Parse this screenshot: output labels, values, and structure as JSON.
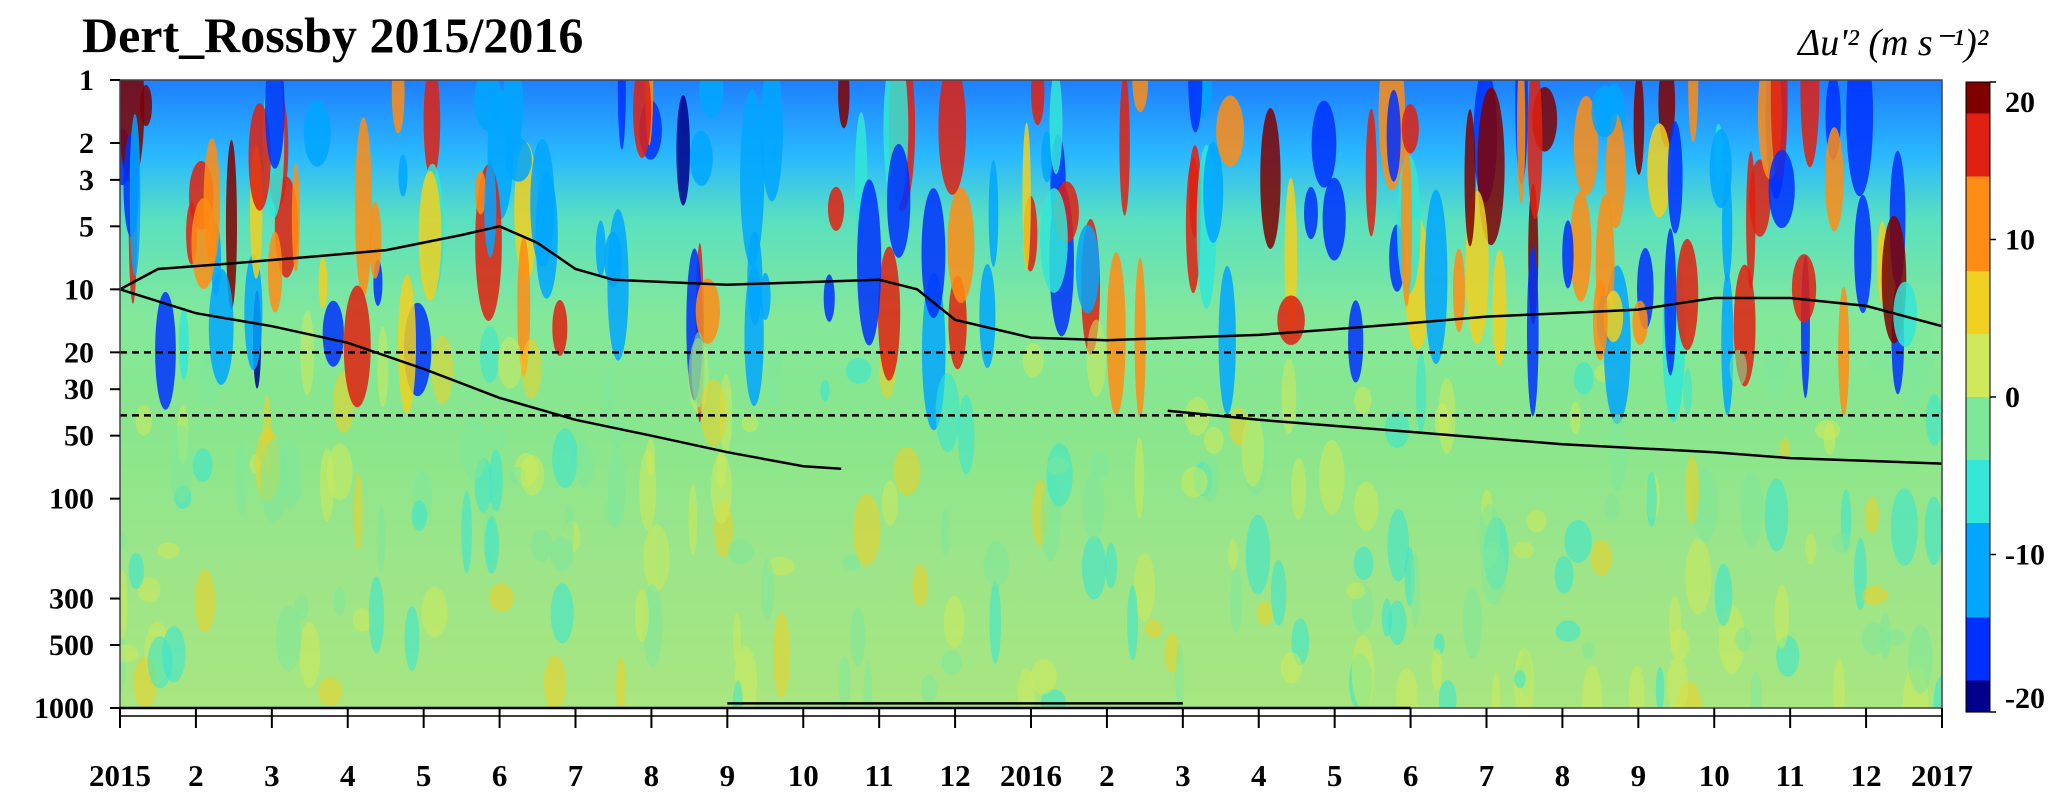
{
  "chart_data": {
    "type": "heatmap",
    "title": "Dert_Rossby 2015/2016",
    "colorbar_label": "Δu'² (m s⁻¹)²",
    "colorbar": {
      "ticks": [
        "20",
        "10",
        "0",
        "-10",
        "-20"
      ],
      "range": [
        -20,
        20
      ],
      "colormap": [
        "#00008b",
        "#0030ff",
        "#00a6ff",
        "#33e6d6",
        "#7de89a",
        "#cfe95a",
        "#f0d020",
        "#ff8c14",
        "#e02010",
        "#800000"
      ]
    },
    "y_axis": {
      "scale": "log",
      "reversed": true,
      "range": [
        1000,
        1
      ],
      "tick_labels": [
        "1",
        "2",
        "3",
        "5",
        "10",
        "20",
        "30",
        "50",
        "100",
        "300",
        "500",
        "1000"
      ],
      "tick_values": [
        1,
        2,
        3,
        5,
        10,
        20,
        30,
        50,
        100,
        300,
        500,
        1000
      ]
    },
    "x_axis": {
      "range": [
        0,
        24
      ],
      "tick_labels": [
        "2015",
        "2",
        "3",
        "4",
        "5",
        "6",
        "7",
        "8",
        "9",
        "10",
        "11",
        "12",
        "2016",
        "2",
        "3",
        "4",
        "5",
        "6",
        "7",
        "8",
        "9",
        "10",
        "11",
        "12",
        "2017"
      ]
    },
    "reference_lines": [
      {
        "style": "dashed",
        "y": 20
      },
      {
        "style": "dashed",
        "y": 40
      }
    ],
    "bottom_bars": [
      {
        "y": 1000,
        "x_start": 0,
        "x_end": 17
      },
      {
        "y": 950,
        "x_start": 8,
        "x_end": 14
      }
    ],
    "wind_contours": {
      "zero_line": [
        {
          "x": 0,
          "y": 10
        },
        {
          "x": 1,
          "y": 13
        },
        {
          "x": 2,
          "y": 15
        },
        {
          "x": 3,
          "y": 18
        },
        {
          "x": 4,
          "y": 24
        },
        {
          "x": 5,
          "y": 33
        },
        {
          "x": 6,
          "y": 42
        },
        {
          "x": 7,
          "y": 50
        },
        {
          "x": 8,
          "y": 60
        },
        {
          "x": 9,
          "y": 70
        },
        {
          "x": 9.5,
          "y": 72
        }
      ],
      "zero_line_2": [
        {
          "x": 13.8,
          "y": 38
        },
        {
          "x": 15,
          "y": 42
        },
        {
          "x": 17,
          "y": 48
        },
        {
          "x": 19,
          "y": 55
        },
        {
          "x": 21,
          "y": 60
        },
        {
          "x": 22,
          "y": 64
        },
        {
          "x": 24,
          "y": 68
        }
      ],
      "upper_line": [
        {
          "x": 0,
          "y": 10
        },
        {
          "x": 0.5,
          "y": 8
        },
        {
          "x": 1.5,
          "y": 7.5
        },
        {
          "x": 2.5,
          "y": 7
        },
        {
          "x": 3.5,
          "y": 6.5
        },
        {
          "x": 4.5,
          "y": 5.5
        },
        {
          "x": 5,
          "y": 5
        },
        {
          "x": 5.5,
          "y": 6
        },
        {
          "x": 6,
          "y": 8
        },
        {
          "x": 6.5,
          "y": 9
        },
        {
          "x": 8,
          "y": 9.5
        },
        {
          "x": 10,
          "y": 9
        },
        {
          "x": 10.5,
          "y": 10
        },
        {
          "x": 11,
          "y": 14
        },
        {
          "x": 12,
          "y": 17
        },
        {
          "x": 13,
          "y": 17.5
        },
        {
          "x": 14,
          "y": 17
        },
        {
          "x": 15,
          "y": 16.5
        },
        {
          "x": 16,
          "y": 15.5
        },
        {
          "x": 17,
          "y": 14.5
        },
        {
          "x": 18,
          "y": 13.5
        },
        {
          "x": 19,
          "y": 13
        },
        {
          "x": 20,
          "y": 12.5
        },
        {
          "x": 21,
          "y": 11
        },
        {
          "x": 22,
          "y": 11
        },
        {
          "x": 23,
          "y": 12
        },
        {
          "x": 24,
          "y": 15
        }
      ]
    }
  }
}
